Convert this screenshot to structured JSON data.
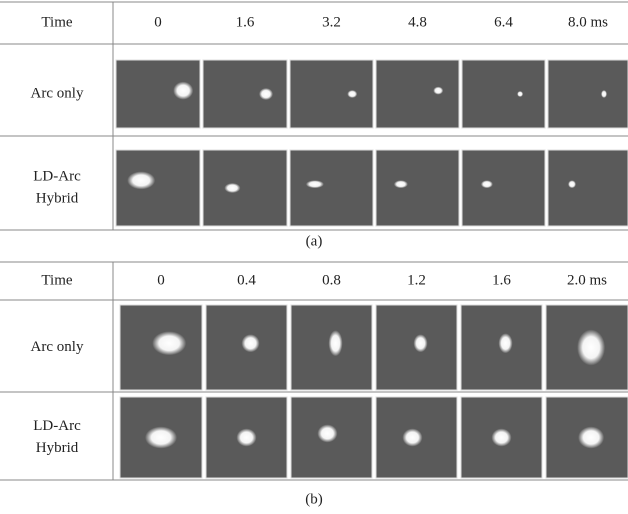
{
  "panels": [
    {
      "header": "Time",
      "times": [
        "0",
        "1.6",
        "3.2",
        "4.8",
        "6.4",
        "8.0 ms"
      ],
      "rows": [
        {
          "label": [
            "Arc only"
          ]
        },
        {
          "label": [
            "LD-Arc",
            "Hybrid"
          ]
        }
      ],
      "caption": "(a)"
    },
    {
      "header": "Time",
      "times": [
        "0",
        "0.4",
        "0.8",
        "1.2",
        "1.6",
        "2.0 ms"
      ],
      "rows": [
        {
          "label": [
            "Arc only"
          ]
        },
        {
          "label": [
            "LD-Arc",
            "Hybrid"
          ]
        }
      ],
      "caption": "(b)"
    }
  ]
}
